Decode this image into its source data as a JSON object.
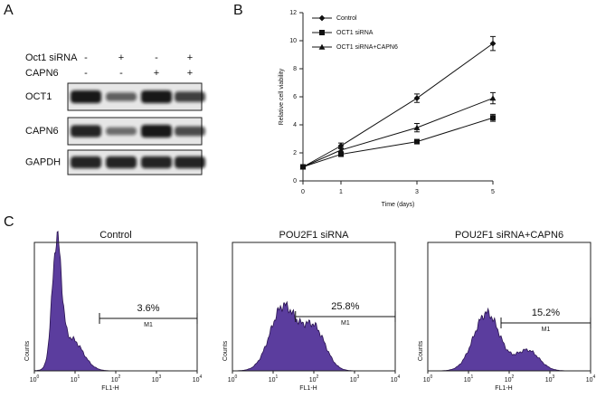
{
  "panel_a": {
    "label": "A",
    "conditions": [
      {
        "name": "Oct1 siRNA",
        "signs": [
          "-",
          "+",
          "-",
          "+"
        ]
      },
      {
        "name": "CAPN6",
        "signs": [
          "-",
          "-",
          "+",
          "+"
        ]
      }
    ],
    "blots": [
      "OCT1",
      "CAPN6",
      "GAPDH"
    ]
  },
  "chart_data": {
    "type": "line",
    "label": "B",
    "xlabel": "Time (days)",
    "ylabel": "Relative cell viability",
    "x": [
      0,
      1,
      3,
      5
    ],
    "xlim": [
      0,
      5
    ],
    "xticks": [
      0,
      1,
      3,
      5
    ],
    "ylim": [
      0,
      12
    ],
    "yticks": [
      0,
      2,
      4,
      6,
      8,
      10,
      12
    ],
    "series": [
      {
        "name": "Control",
        "color": "#111111",
        "marker": "diamond",
        "values": [
          1,
          2.5,
          5.9,
          9.8
        ],
        "errors": [
          0.1,
          0.2,
          0.3,
          0.5
        ]
      },
      {
        "name": "OCT1 siRNA",
        "color": "#111111",
        "marker": "square",
        "values": [
          1,
          1.9,
          2.8,
          4.5
        ],
        "errors": [
          0.05,
          0.1,
          0.15,
          0.25
        ]
      },
      {
        "name": "OCT1 siRNA+CAPN6",
        "color": "#111111",
        "marker": "triangle",
        "values": [
          1,
          2.2,
          3.8,
          5.9
        ],
        "errors": [
          0.1,
          0.15,
          0.3,
          0.4
        ]
      }
    ],
    "legend": "upper left"
  },
  "panel_c": {
    "label": "C",
    "ylabel": "Counts",
    "xlabel": "FL1-H",
    "tick_base": "10",
    "tick_exponents": [
      "0",
      "1",
      "2",
      "3",
      "4"
    ],
    "gate": "M1",
    "histograms": [
      {
        "title": "Control",
        "percent": "3.6%"
      },
      {
        "title": "POU2F1 siRNA",
        "percent": "25.8%"
      },
      {
        "title": "POU2F1 siRNA+CAPN6",
        "percent": "15.2%"
      }
    ]
  }
}
